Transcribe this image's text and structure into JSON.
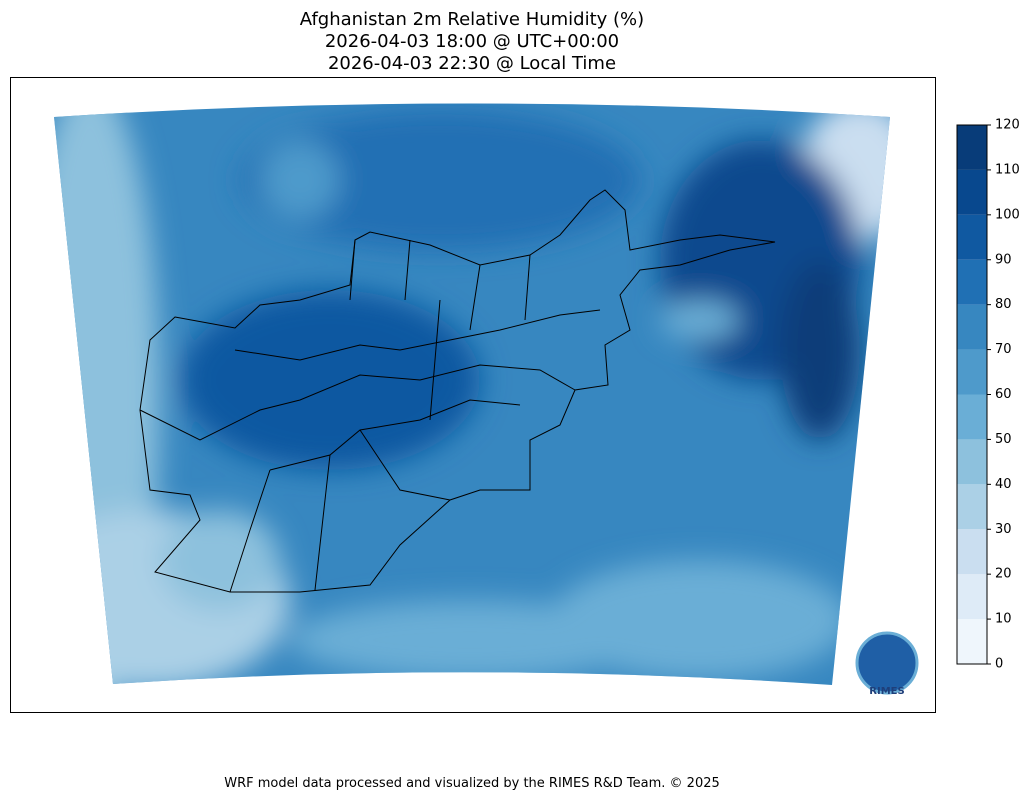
{
  "title": [
    "Afghanistan 2m Relative Humidity (%)",
    "2026-04-03 18:00 @ UTC+00:00",
    "2026-04-03 22:30 @ Local Time"
  ],
  "colorbar": {
    "levels": [
      0,
      10,
      20,
      30,
      40,
      50,
      60,
      70,
      80,
      90,
      100,
      110,
      120
    ],
    "colors": [
      "#eff6fc",
      "#deebf7",
      "#cadef0",
      "#abd0e6",
      "#8dc1dd",
      "#6aaed6",
      "#4e9acb",
      "#3787c0",
      "#2070b4",
      "#1059a1",
      "#08488e",
      "#083c79"
    ]
  },
  "logo": "RIMES",
  "footer": "WRF model data processed and visualized by the RIMES R&D Team. © 2025"
}
